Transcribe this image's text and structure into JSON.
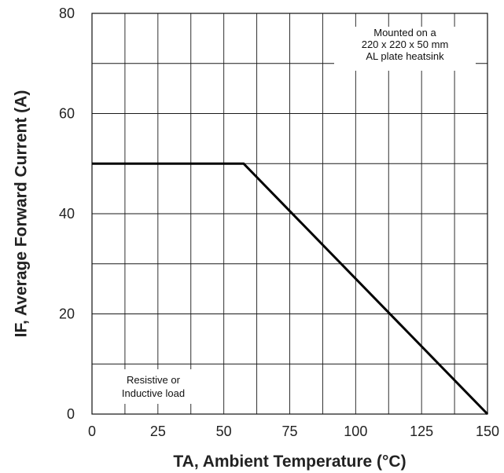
{
  "chart_data": {
    "type": "line",
    "title": "",
    "xlabel": "TA, Ambient Temperature (°C)",
    "ylabel": "IF, Average Forward Current (A)",
    "xlim": [
      0,
      150
    ],
    "ylim": [
      0,
      80
    ],
    "x_ticks": [
      0,
      25,
      50,
      75,
      100,
      125,
      150
    ],
    "y_ticks": [
      0,
      20,
      40,
      60,
      80
    ],
    "x_tick_labels": [
      "0",
      "25",
      "50",
      "75",
      "100",
      "125",
      "150"
    ],
    "y_tick_labels": [
      "0",
      "20",
      "40",
      "60",
      "80"
    ],
    "x_grid_step": 12.5,
    "y_grid_step": 10,
    "grid": true,
    "series": [
      {
        "x": [
          0,
          57.5,
          150
        ],
        "y": [
          50,
          50,
          0
        ]
      }
    ],
    "annotations": [
      {
        "key": "mounting",
        "lines": [
          "Mounted on a",
          "220 x 220 x 50 mm",
          "AL plate heatsink"
        ]
      },
      {
        "key": "load",
        "lines": [
          "Resistive or",
          "Inductive load"
        ]
      }
    ]
  }
}
